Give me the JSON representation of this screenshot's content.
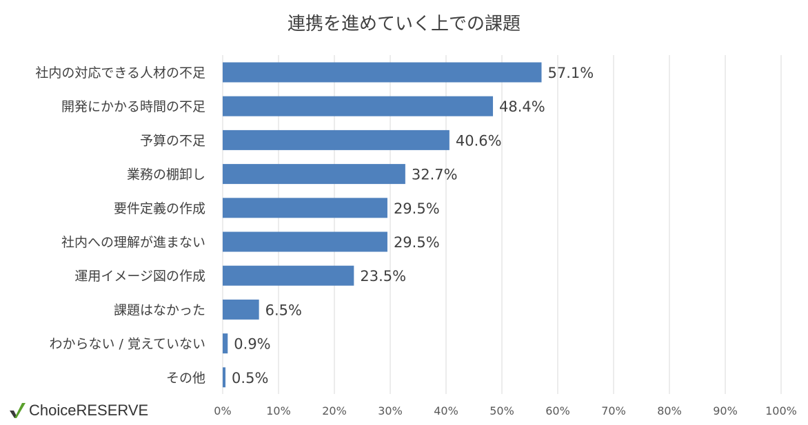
{
  "chart_data": {
    "type": "bar",
    "orientation": "horizontal",
    "title": "連携を進めていく上での課題",
    "categories": [
      "社内の対応できる人材の不足",
      "開発にかかる時間の不足",
      "予算の不足",
      "業務の棚卸し",
      "要件定義の作成",
      "社内への理解が進まない",
      "運用イメージ図の作成",
      "課題はなかった",
      "わからない / 覚えていない",
      "その他"
    ],
    "values": [
      57.1,
      48.4,
      40.6,
      32.7,
      29.5,
      29.5,
      23.5,
      6.5,
      0.9,
      0.5
    ],
    "value_labels": [
      "57.1%",
      "48.4%",
      "40.6%",
      "32.7%",
      "29.5%",
      "29.5%",
      "23.5%",
      "6.5%",
      "0.9%",
      "0.5%"
    ],
    "xlim": [
      0,
      100
    ],
    "x_ticks": [
      "0%",
      "10%",
      "20%",
      "30%",
      "40%",
      "50%",
      "60%",
      "70%",
      "80%",
      "90%",
      "100%"
    ],
    "grid": true,
    "legend": "none",
    "bar_color": "#4f81bd",
    "grid_color": "#d9d9d9"
  },
  "brand": {
    "logo_text": "ChoiceRESERVE",
    "check_color": "#5aa02c",
    "check_dark_color": "#3a3a3a"
  }
}
